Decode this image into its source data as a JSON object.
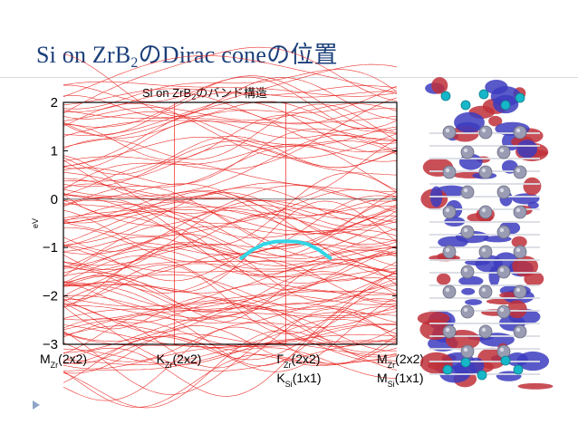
{
  "slide": {
    "title_prefix": "Si on ZrB",
    "title_sub": "2",
    "title_suffix": "のDirac coneの位置"
  },
  "colors": {
    "title": "#1b3f7a",
    "bands": "#e8201c",
    "dirac_cone": "#33d6e6",
    "atom_si": "#9a9cb4",
    "atom_zr": "#17b6c9",
    "orbital_red": "#c0303a",
    "orbital_blue": "#3c3cc0"
  },
  "chart_data": {
    "type": "line",
    "title_prefix": "Si on ZrB",
    "title_sub": "2",
    "title_suffix": "のバンド構造",
    "ylabel": "eV",
    "ylim": [
      -3,
      2
    ],
    "yticks": [
      "2",
      "1",
      "0",
      "−1",
      "−2",
      "−3"
    ],
    "grid": false,
    "legend": "none",
    "kpoints": [
      {
        "pos": 0,
        "main": "M",
        "sub": "Zr",
        "suffix": "(2x2)",
        "second_main": "",
        "second_sub": "",
        "second_suffix": ""
      },
      {
        "pos": 1,
        "main": "K",
        "sub": "Zr",
        "suffix": "(2x2)",
        "second_main": "",
        "second_sub": "",
        "second_suffix": ""
      },
      {
        "pos": 2,
        "main": "Γ",
        "sub": "Zr",
        "suffix": "(2x2)",
        "second_main": "K",
        "second_sub": "Si",
        "second_suffix": "(1x1)"
      },
      {
        "pos": 3,
        "main": "M",
        "sub": "Zr",
        "suffix": "(2x2)",
        "second_main": "M",
        "second_sub": "Si",
        "second_suffix": "(1x1)"
      }
    ],
    "series": [
      {
        "values": [
          [
            1.6,
            -1.22
          ],
          [
            1.7,
            -1.05
          ],
          [
            1.8,
            -0.93
          ],
          [
            1.9,
            -0.88
          ],
          [
            2.0,
            -0.87
          ],
          [
            2.1,
            -0.88
          ],
          [
            2.2,
            -0.93
          ],
          [
            2.3,
            -1.05
          ],
          [
            2.4,
            -1.22
          ]
        ]
      }
    ]
  },
  "structure_model": {
    "icon": "atomic-structure-isosurface"
  }
}
